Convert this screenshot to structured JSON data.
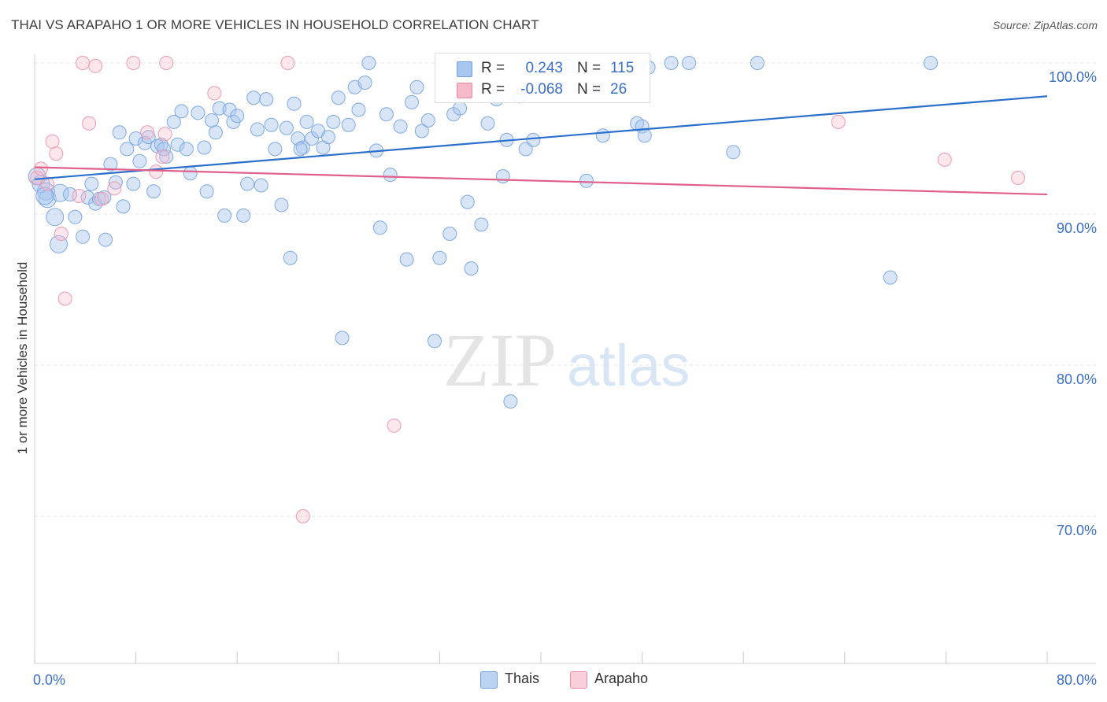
{
  "header": {
    "title": "THAI VS ARAPAHO 1 OR MORE VEHICLES IN HOUSEHOLD CORRELATION CHART",
    "source": "Source: ZipAtlas.com"
  },
  "watermark": {
    "zip": "ZIP",
    "atlas": "atlas"
  },
  "legend": {
    "rows": [
      {
        "r_label": "R =",
        "r_value": "0.243",
        "n_label": "N =",
        "n_value": "115",
        "color": "#a9c6ee"
      },
      {
        "r_label": "R =",
        "r_value": "-0.068",
        "n_label": "N =",
        "n_value": "26",
        "color": "#f5b9ca"
      }
    ]
  },
  "bottom_legend": {
    "items": [
      "Thais",
      "Arapaho"
    ]
  },
  "chart_data": {
    "type": "scatter",
    "title": "THAI VS ARAPAHO 1 OR MORE VEHICLES IN HOUSEHOLD CORRELATION CHART",
    "xlabel": "",
    "ylabel": "1 or more Vehicles in Household",
    "xlim": [
      0,
      80
    ],
    "ylim": [
      60.5,
      101.5
    ],
    "x_tick_labels": [
      "0.0%",
      "80.0%"
    ],
    "y_tick_labels": [
      "100.0%",
      "90.0%",
      "80.0%",
      "70.0%"
    ],
    "y_ticks": [
      100,
      90,
      80,
      70
    ],
    "grid": true,
    "legend_position": "top-center",
    "colors": {
      "thais": "#a9c6ee",
      "thais_line": "#2a6fcc",
      "arapaho": "#f5b9ca",
      "arapaho_line": "#e0608a",
      "tick_text": "#3a6fc4"
    },
    "series": [
      {
        "name": "Thais",
        "r": 0.243,
        "n": 115,
        "trend": [
          [
            0,
            92.3
          ],
          [
            80,
            97.8
          ]
        ],
        "points": [
          [
            0.2,
            92.5
          ],
          [
            0.5,
            92.0
          ],
          [
            0.9,
            91.5
          ],
          [
            1.0,
            91.0
          ],
          [
            1.6,
            89.8
          ],
          [
            1.9,
            88.0
          ],
          [
            2.0,
            91.4
          ],
          [
            2.8,
            91.3
          ],
          [
            3.2,
            89.8
          ],
          [
            3.8,
            88.5
          ],
          [
            4.2,
            91.1
          ],
          [
            4.5,
            92.0
          ],
          [
            4.8,
            90.7
          ],
          [
            5.1,
            91.0
          ],
          [
            5.6,
            88.3
          ],
          [
            6.0,
            93.3
          ],
          [
            6.4,
            92.1
          ],
          [
            6.7,
            95.4
          ],
          [
            7.0,
            90.5
          ],
          [
            7.3,
            94.3
          ],
          [
            7.8,
            92.0
          ],
          [
            8.0,
            95.0
          ],
          [
            8.3,
            93.5
          ],
          [
            8.7,
            94.7
          ],
          [
            9.0,
            95.1
          ],
          [
            9.4,
            91.5
          ],
          [
            9.7,
            94.5
          ],
          [
            10.0,
            94.6
          ],
          [
            10.4,
            93.8
          ],
          [
            11.0,
            96.1
          ],
          [
            11.3,
            94.6
          ],
          [
            11.6,
            96.8
          ],
          [
            12.0,
            94.3
          ],
          [
            12.3,
            92.7
          ],
          [
            12.9,
            96.7
          ],
          [
            13.4,
            94.4
          ],
          [
            13.6,
            91.5
          ],
          [
            14.0,
            96.2
          ],
          [
            14.3,
            95.4
          ],
          [
            14.6,
            97.0
          ],
          [
            15.0,
            89.9
          ],
          [
            15.4,
            96.9
          ],
          [
            15.7,
            96.1
          ],
          [
            16.0,
            96.5
          ],
          [
            16.5,
            89.9
          ],
          [
            16.8,
            92.0
          ],
          [
            17.3,
            97.7
          ],
          [
            17.6,
            95.6
          ],
          [
            17.9,
            91.9
          ],
          [
            18.3,
            97.6
          ],
          [
            18.7,
            95.9
          ],
          [
            19.0,
            94.3
          ],
          [
            19.5,
            90.6
          ],
          [
            19.9,
            95.7
          ],
          [
            20.2,
            87.1
          ],
          [
            20.5,
            97.3
          ],
          [
            20.8,
            95.0
          ],
          [
            21.2,
            94.4
          ],
          [
            21.5,
            96.1
          ],
          [
            21.9,
            95.0
          ],
          [
            22.4,
            95.5
          ],
          [
            22.8,
            94.4
          ],
          [
            23.2,
            95.1
          ],
          [
            23.6,
            96.1
          ],
          [
            24.0,
            97.7
          ],
          [
            24.3,
            81.8
          ],
          [
            24.8,
            95.9
          ],
          [
            25.3,
            98.4
          ],
          [
            25.6,
            96.9
          ],
          [
            26.1,
            98.7
          ],
          [
            26.4,
            100.0
          ],
          [
            27.0,
            94.2
          ],
          [
            27.3,
            89.1
          ],
          [
            27.8,
            96.6
          ],
          [
            28.1,
            92.6
          ],
          [
            28.9,
            95.8
          ],
          [
            29.4,
            87.0
          ],
          [
            29.8,
            97.4
          ],
          [
            30.2,
            98.4
          ],
          [
            30.6,
            95.5
          ],
          [
            31.1,
            96.2
          ],
          [
            31.6,
            81.6
          ],
          [
            32.0,
            87.1
          ],
          [
            32.8,
            88.7
          ],
          [
            33.1,
            96.6
          ],
          [
            33.6,
            97.0
          ],
          [
            34.2,
            90.8
          ],
          [
            34.5,
            86.4
          ],
          [
            35.3,
            89.3
          ],
          [
            35.8,
            96.0
          ],
          [
            36.5,
            97.6
          ],
          [
            37.0,
            92.5
          ],
          [
            37.3,
            94.9
          ],
          [
            37.6,
            77.6
          ],
          [
            38.3,
            97.8
          ],
          [
            38.8,
            94.3
          ],
          [
            39.4,
            94.9
          ],
          [
            40.0,
            99.8
          ],
          [
            42.2,
            99.8
          ],
          [
            43.6,
            92.2
          ],
          [
            44.9,
            95.2
          ],
          [
            47.6,
            96.0
          ],
          [
            48.0,
            95.8
          ],
          [
            48.2,
            95.2
          ],
          [
            48.5,
            99.7
          ],
          [
            50.3,
            100.0
          ],
          [
            51.7,
            100.0
          ],
          [
            55.2,
            94.1
          ],
          [
            57.1,
            100.0
          ],
          [
            67.6,
            85.8
          ],
          [
            70.8,
            100.0
          ],
          [
            0.8,
            91.2
          ],
          [
            5.5,
            91.1
          ],
          [
            10.2,
            94.3
          ],
          [
            21.0,
            94.3
          ]
        ]
      },
      {
        "name": "Arapaho",
        "r": -0.068,
        "n": 26,
        "trend": [
          [
            0,
            93.1
          ],
          [
            80,
            91.3
          ]
        ],
        "points": [
          [
            0.2,
            92.4
          ],
          [
            0.5,
            93.0
          ],
          [
            1.0,
            92.0
          ],
          [
            1.4,
            94.8
          ],
          [
            1.7,
            94.0
          ],
          [
            2.1,
            88.7
          ],
          [
            2.4,
            84.4
          ],
          [
            3.5,
            91.2
          ],
          [
            3.8,
            100.0
          ],
          [
            4.3,
            96.0
          ],
          [
            4.8,
            99.8
          ],
          [
            5.3,
            91.0
          ],
          [
            6.3,
            91.7
          ],
          [
            7.8,
            100.0
          ],
          [
            8.9,
            95.4
          ],
          [
            9.6,
            92.8
          ],
          [
            10.1,
            93.8
          ],
          [
            10.3,
            95.3
          ],
          [
            10.4,
            100.0
          ],
          [
            14.2,
            98.0
          ],
          [
            20.0,
            100.0
          ],
          [
            21.2,
            70.0
          ],
          [
            28.4,
            76.0
          ],
          [
            63.5,
            96.1
          ],
          [
            71.9,
            93.6
          ],
          [
            77.7,
            92.4
          ]
        ]
      }
    ]
  }
}
